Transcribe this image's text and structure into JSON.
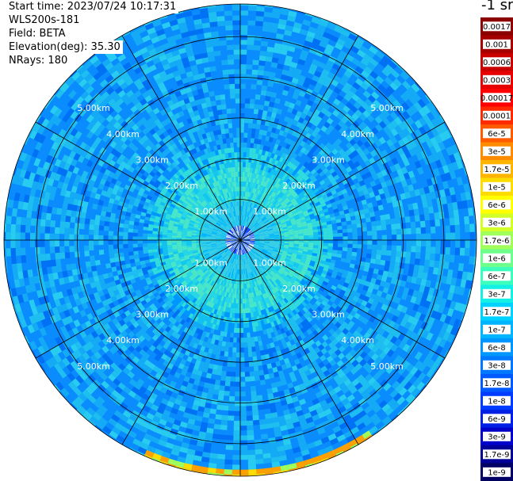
{
  "info": {
    "start_time": "Start time: 2023/07/24 10:17:31",
    "device": "WLS200s-181",
    "field": "Field: BETA",
    "elevation": "Elevation(deg): 35.30",
    "nrays": "NRays: 180"
  },
  "chart_data": {
    "type": "heatmap",
    "projection": "polar",
    "range_rings_km": [
      1,
      2,
      3,
      4,
      5
    ],
    "ring_labels": [
      "1.00km",
      "2.00km",
      "3.00km",
      "4.00km",
      "5.00km"
    ],
    "max_range_km": 5.8,
    "radial_lines_deg": [
      0,
      30,
      60,
      90,
      120,
      150,
      180,
      210,
      240,
      270,
      300,
      330
    ],
    "nrays": 180,
    "colorbar": {
      "unit": "-1 sr",
      "scale": "log",
      "labels": [
        "0.0017",
        "0.001",
        "0.0006",
        "0.0003",
        "0.00017",
        "0.0001",
        "6e-5",
        "3e-5",
        "1.7e-5",
        "1e-5",
        "6e-6",
        "3e-6",
        "1.7e-6",
        "1e-6",
        "6e-7",
        "3e-7",
        "1.7e-7",
        "1e-7",
        "6e-8",
        "3e-8",
        "1.7e-8",
        "1e-8",
        "6e-9",
        "3e-9",
        "1.7e-9",
        "1e-9"
      ],
      "colors": [
        "#8b0000",
        "#a50000",
        "#c80000",
        "#e60000",
        "#ff0000",
        "#ff2a00",
        "#ff5a00",
        "#ff8c00",
        "#ffb400",
        "#ffdc00",
        "#ffff00",
        "#d2ff28",
        "#a0ff5a",
        "#6eff8c",
        "#3cffbe",
        "#14f0e6",
        "#00d2ff",
        "#00b4ff",
        "#0096ff",
        "#0078ff",
        "#005aff",
        "#003cff",
        "#0020e6",
        "#0000c8",
        "#000096",
        "#000064"
      ]
    },
    "field_distribution": "high values (cyan/green, ~1e-7 to 1e-6) near center within ~2 km; mostly blue (~1e-8 to 6e-8) beyond; orange/yellow arc (~1e-5) near south-east edge at ~5.7 km"
  }
}
